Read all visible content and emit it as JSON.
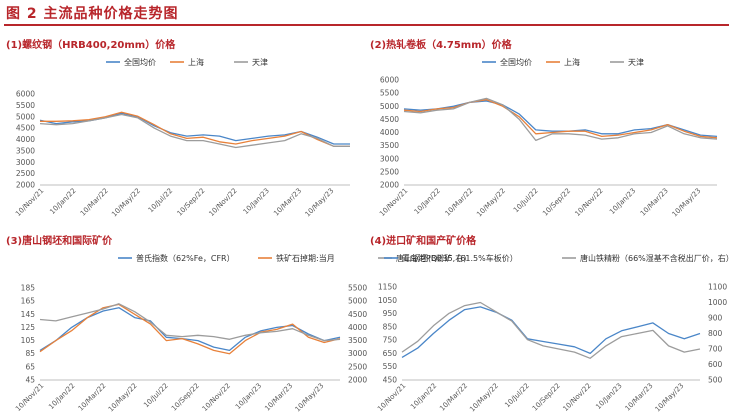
{
  "header": {
    "title": "图 2 主流品种价格走势图"
  },
  "colors": {
    "blue": "#4a86c8",
    "orange": "#e8813a",
    "gray": "#9c9c9c",
    "title_red": "#b8262b"
  },
  "x_ticks": [
    "10/Nov/21",
    "10/Jan/22",
    "10/Mar/22",
    "10/May/22",
    "10/Jul/22",
    "10/Sep/22",
    "10/Nov/22",
    "10/Jan/23",
    "10/Mar/23",
    "10/May/23"
  ],
  "chart_data": [
    {
      "type": "line",
      "title": "(1)螺纹钢（HRB400,20mm）价格",
      "y_ticks": [
        "6000",
        "5500",
        "5000",
        "4500",
        "4000",
        "3500",
        "3000",
        "2500",
        "2000"
      ],
      "ylim": [
        2000,
        6000
      ],
      "x": [
        "2021-11",
        "2021-12",
        "2022-01",
        "2022-02",
        "2022-03",
        "2022-04",
        "2022-05",
        "2022-06",
        "2022-07",
        "2022-08",
        "2022-09",
        "2022-10",
        "2022-11",
        "2022-12",
        "2023-01",
        "2023-02",
        "2023-03",
        "2023-04",
        "2023-05",
        "2023-06"
      ],
      "series": [
        {
          "name": "全国均价",
          "color": "#4a86c8",
          "values": [
            4850,
            4700,
            4780,
            4820,
            4950,
            5150,
            5000,
            4600,
            4300,
            4150,
            4200,
            4150,
            3950,
            4050,
            4150,
            4200,
            4350,
            4100,
            3800,
            3800
          ]
        },
        {
          "name": "上海",
          "color": "#e8813a",
          "values": [
            4800,
            4800,
            4820,
            4870,
            5000,
            5200,
            5020,
            4650,
            4250,
            4050,
            4100,
            3900,
            3800,
            3950,
            4050,
            4150,
            4350,
            4000,
            3700,
            3700
          ]
        },
        {
          "name": "天津",
          "color": "#9c9c9c",
          "values": [
            4700,
            4650,
            4700,
            4820,
            4950,
            5100,
            4950,
            4500,
            4150,
            3950,
            3950,
            3800,
            3650,
            3750,
            3850,
            3950,
            4250,
            4050,
            3700,
            3700
          ]
        }
      ]
    },
    {
      "type": "line",
      "title": "(2)热轧卷板（4.75mm）价格",
      "y_ticks": [
        "6000",
        "5500",
        "5000",
        "4500",
        "4000",
        "3500",
        "3000",
        "2500",
        "2000"
      ],
      "ylim": [
        2000,
        6000
      ],
      "x": [
        "2021-11",
        "2021-12",
        "2022-01",
        "2022-02",
        "2022-03",
        "2022-04",
        "2022-05",
        "2022-06",
        "2022-07",
        "2022-08",
        "2022-09",
        "2022-10",
        "2022-11",
        "2022-12",
        "2023-01",
        "2023-02",
        "2023-03",
        "2023-04",
        "2023-05",
        "2023-06"
      ],
      "series": [
        {
          "name": "全国均价",
          "color": "#4a86c8",
          "values": [
            4900,
            4850,
            4900,
            5000,
            5150,
            5200,
            5050,
            4700,
            4100,
            4050,
            4050,
            4100,
            3950,
            3950,
            4100,
            4150,
            4300,
            4100,
            3900,
            3850
          ]
        },
        {
          "name": "上海",
          "color": "#e8813a",
          "values": [
            4850,
            4800,
            4900,
            4950,
            5150,
            5250,
            5000,
            4600,
            3950,
            4000,
            4050,
            4050,
            3850,
            3900,
            4000,
            4100,
            4300,
            4050,
            3850,
            3800
          ]
        },
        {
          "name": "天津",
          "color": "#9c9c9c",
          "values": [
            4800,
            4750,
            4850,
            4900,
            5150,
            5300,
            5050,
            4500,
            3700,
            3950,
            3950,
            3900,
            3750,
            3800,
            3950,
            4000,
            4250,
            3950,
            3800,
            3750
          ]
        }
      ]
    },
    {
      "type": "line",
      "title": "(3)唐山钢坯和国际矿价",
      "y_ticks": [
        "185",
        "165",
        "145",
        "125",
        "105",
        "85",
        "65",
        "45"
      ],
      "y2_ticks": [
        "5500",
        "5000",
        "4500",
        "4000",
        "3500",
        "3000",
        "2500",
        "2000"
      ],
      "ylim": [
        45,
        185
      ],
      "y2lim": [
        2000,
        5500
      ],
      "x": [
        "2021-11",
        "2021-12",
        "2022-01",
        "2022-02",
        "2022-03",
        "2022-04",
        "2022-05",
        "2022-06",
        "2022-07",
        "2022-08",
        "2022-09",
        "2022-10",
        "2022-11",
        "2022-12",
        "2023-01",
        "2023-02",
        "2023-03",
        "2023-04",
        "2023-05",
        "2023-06"
      ],
      "series": [
        {
          "name": "普氏指数（62%Fe，CFR）",
          "axis": "left",
          "color": "#4a86c8",
          "values": [
            90,
            105,
            125,
            140,
            150,
            155,
            140,
            135,
            110,
            108,
            105,
            95,
            90,
            110,
            120,
            125,
            128,
            115,
            105,
            110
          ]
        },
        {
          "name": "铁矿石掉期:当月",
          "axis": "left",
          "color": "#e8813a",
          "values": [
            88,
            105,
            120,
            140,
            155,
            160,
            145,
            130,
            105,
            108,
            100,
            90,
            85,
            105,
            118,
            122,
            130,
            110,
            102,
            108
          ]
        },
        {
          "name": "唐山钢坯(Q235,右)",
          "axis": "right",
          "color": "#9c9c9c",
          "values": [
            4300,
            4250,
            4400,
            4550,
            4700,
            4900,
            4600,
            4200,
            3700,
            3650,
            3700,
            3650,
            3550,
            3700,
            3800,
            3850,
            3950,
            3700,
            3500,
            3550
          ]
        }
      ]
    },
    {
      "type": "line",
      "title": "(4)进口矿和国产矿价格",
      "y_ticks": [
        "1150",
        "1050",
        "950",
        "850",
        "750",
        "650",
        "550",
        "450"
      ],
      "y2_ticks": [
        "1100",
        "1000",
        "900",
        "800",
        "700",
        "600",
        "500"
      ],
      "ylim": [
        450,
        1150
      ],
      "y2lim": [
        500,
        1100
      ],
      "x": [
        "2021-11",
        "2021-12",
        "2022-01",
        "2022-02",
        "2022-03",
        "2022-04",
        "2022-05",
        "2022-06",
        "2022-07",
        "2022-08",
        "2022-09",
        "2022-10",
        "2022-11",
        "2022-12",
        "2023-01",
        "2023-02",
        "2023-03",
        "2023-04",
        "2023-05",
        "2023-06"
      ],
      "series": [
        {
          "name": "青岛港PB粉矿（61.5%车板价）",
          "axis": "left",
          "color": "#4a86c8",
          "values": [
            620,
            690,
            800,
            900,
            980,
            1000,
            960,
            900,
            760,
            740,
            720,
            700,
            650,
            760,
            820,
            850,
            880,
            800,
            760,
            800
          ]
        },
        {
          "name": "唐山铁精粉（66%湿基不含税出厂价，右）",
          "axis": "right",
          "color": "#9c9c9c",
          "values": [
            680,
            750,
            850,
            930,
            980,
            1000,
            940,
            880,
            760,
            720,
            700,
            680,
            640,
            720,
            780,
            800,
            820,
            720,
            680,
            700
          ]
        }
      ]
    }
  ]
}
